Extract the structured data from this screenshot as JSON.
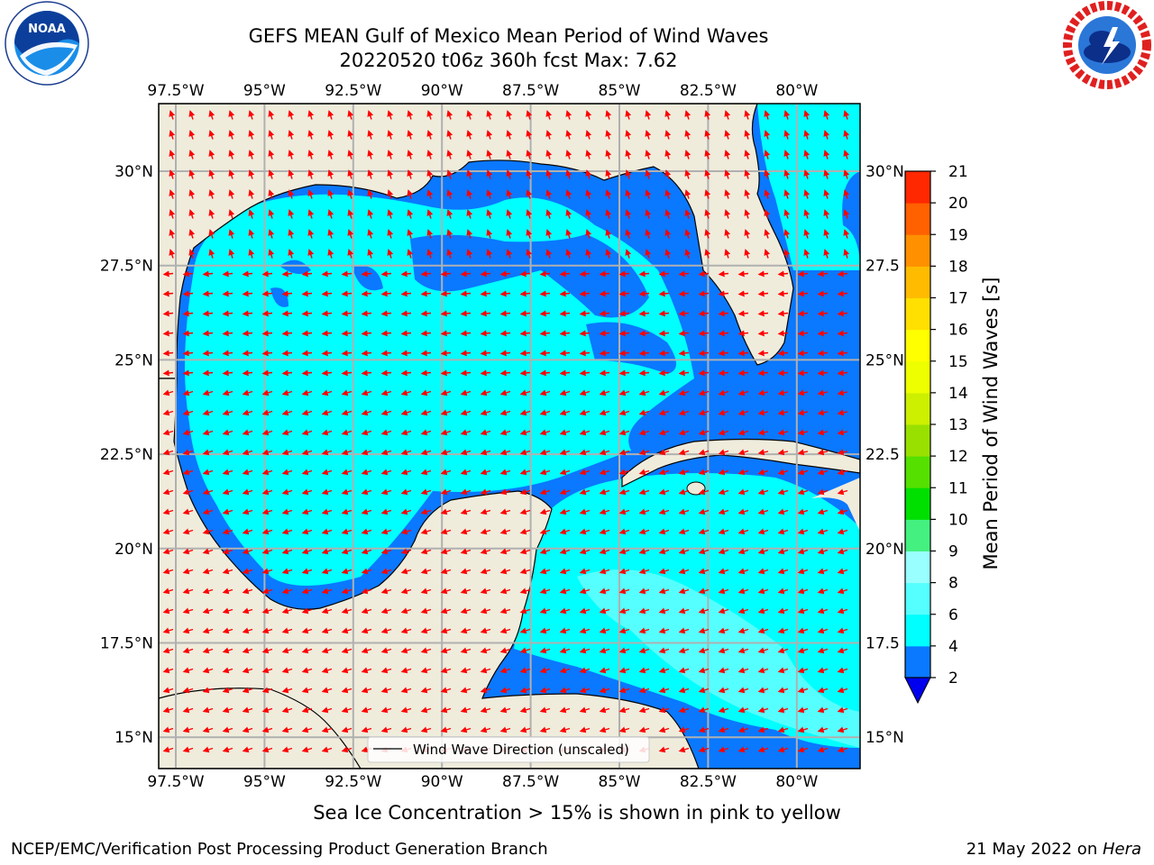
{
  "header": {
    "title_line1": "GEFS MEAN Gulf of Mexico Mean Period of Wind Waves",
    "title_line2": "20220520 t06z 360h fcst   Max: 7.62"
  },
  "logos": {
    "left": "NOAA",
    "left_ring_text": "NATIONAL OCEANIC AND ATMOSPHERIC ADMINISTRATION · U.S. DEPARTMENT OF COMMERCE",
    "right_ring_text": "NATIONAL WEATHER SERVICE"
  },
  "map": {
    "lon_ticks": [
      "97.5°W",
      "95°W",
      "92.5°W",
      "90°W",
      "87.5°W",
      "85°W",
      "82.5°W",
      "80°W"
    ],
    "lat_ticks": [
      "30°N",
      "27.5°N",
      "25°N",
      "22.5°N",
      "20°N",
      "17.5°N",
      "15°N"
    ],
    "lat_ticks_right": [
      "30°N",
      "27.5",
      "25°N",
      "22.5",
      "20°N",
      "17.5",
      "15°N"
    ],
    "legend_label": "Wind Wave Direction (unscaled)",
    "colors": {
      "land": "#efecdc",
      "deep": "#0000ee",
      "blue": "#0a78ff",
      "cyan": "#00ffff",
      "light_cyan": "#55ffff",
      "arrow": "#ff0000"
    }
  },
  "colorbar": {
    "label": "Mean Period of Wind Waves [s]",
    "ticks": [
      "2",
      "4",
      "6",
      "8",
      "9",
      "10",
      "11",
      "12",
      "13",
      "14",
      "15",
      "16",
      "17",
      "18",
      "19",
      "20",
      "21"
    ],
    "colors": [
      "#0a78ff",
      "#00ffff",
      "#55ffff",
      "#99ffff",
      "#44f080",
      "#00e000",
      "#55e000",
      "#99e000",
      "#ccf000",
      "#eeff00",
      "#ffff00",
      "#ffe000",
      "#ffbb00",
      "#ff9000",
      "#ff6000",
      "#ff2800",
      "#ff0000"
    ],
    "extend_color": "#0000ee"
  },
  "footer": {
    "subtitle": "Sea Ice Concentration > 15% is shown in pink to yellow",
    "left": "NCEP/EMC/Verification Post Processing Product Generation Branch",
    "date": "21 May 2022 on ",
    "machine": "Hera"
  }
}
